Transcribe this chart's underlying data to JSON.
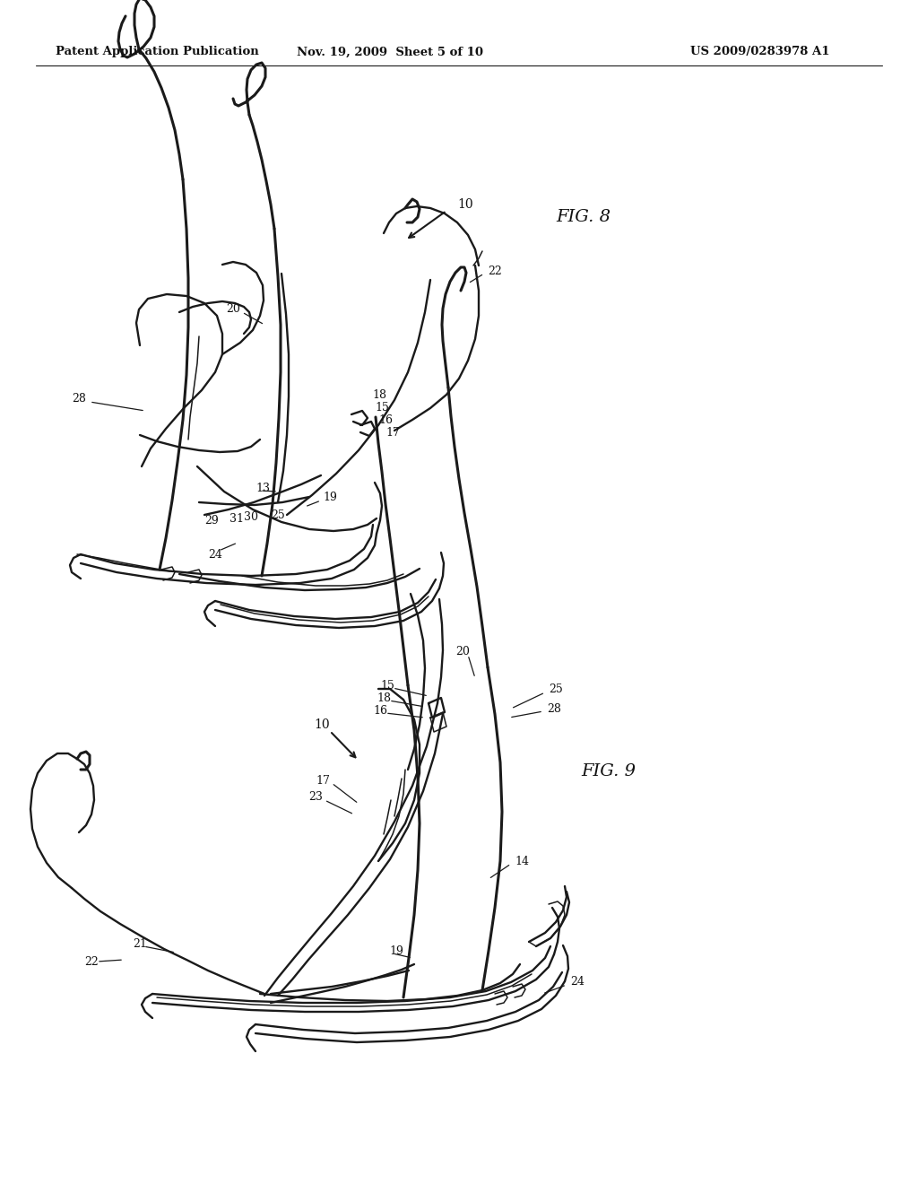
{
  "background_color": "#ffffff",
  "header_left": "Patent Application Publication",
  "header_center": "Nov. 19, 2009  Sheet 5 of 10",
  "header_right": "US 2009/0283978 A1",
  "line_color": "#1a1a1a",
  "lw_thick": 2.2,
  "lw_med": 1.7,
  "lw_thin": 1.1,
  "text_color": "#111111"
}
